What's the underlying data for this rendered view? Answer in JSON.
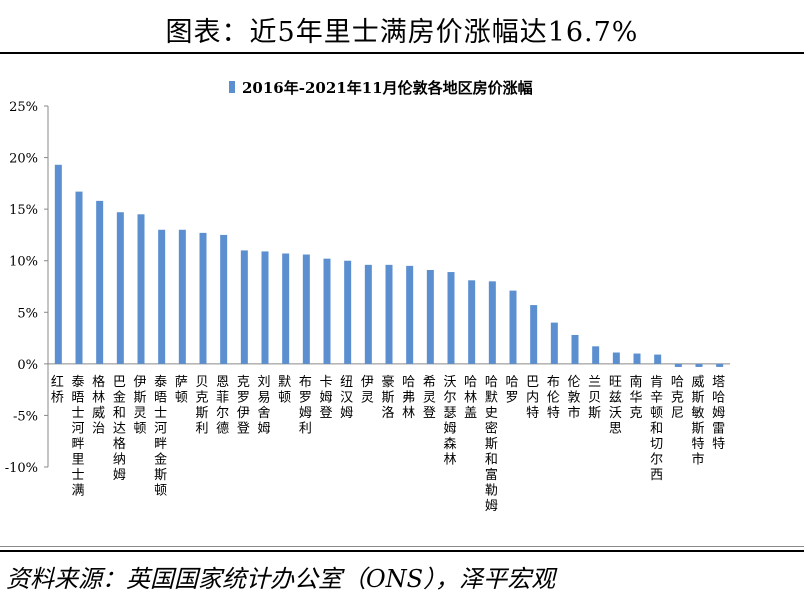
{
  "page_title": "图表：近5年里士满房价涨幅达16.7%",
  "source_note": "资料来源：英国国家统计办公室（ONS），泽平宏观",
  "chart_data": {
    "type": "bar",
    "title": "2016年-2021年11月伦敦各地区房价涨幅",
    "legend_position": "top",
    "ylim": [
      -0.1,
      0.25
    ],
    "yticks": [
      -0.1,
      -0.05,
      0,
      0.05,
      0.1,
      0.15,
      0.2,
      0.25
    ],
    "ytick_labels": [
      "-10%",
      "-5%",
      "0%",
      "5%",
      "10%",
      "15%",
      "20%",
      "25%"
    ],
    "grid": false,
    "bar_color": "#5b8fd0",
    "categories": [
      "红桥",
      "泰晤士河畔里士满",
      "格林威治",
      "巴金和达格纳姆",
      "伊斯灵顿",
      "泰晤士河畔金斯顿",
      "萨顿",
      "贝克斯利",
      "恩菲尔德",
      "克罗伊登",
      "刘易舍姆",
      "默顿",
      "布罗姆利",
      "卡姆登",
      "纽汉姆",
      "伊灵",
      "豪斯洛",
      "哈弗林",
      "希灵登",
      "沃尔瑟姆森林",
      "哈林盖",
      "哈默史密斯和富勒姆",
      "哈罗",
      "巴内特",
      "布伦特",
      "伦敦市",
      "兰贝斯",
      "旺兹沃思",
      "南华克",
      "肯辛顿和切尔西",
      "哈克尼",
      "威斯敏斯特市",
      "塔哈姆雷特"
    ],
    "values": [
      0.193,
      0.167,
      0.158,
      0.147,
      0.145,
      0.13,
      0.13,
      0.127,
      0.125,
      0.11,
      0.109,
      0.107,
      0.106,
      0.102,
      0.1,
      0.096,
      0.096,
      0.095,
      0.091,
      0.089,
      0.081,
      0.08,
      0.071,
      0.057,
      0.04,
      0.028,
      0.017,
      0.011,
      0.01,
      0.009,
      -0.003,
      -0.003,
      -0.003
    ]
  }
}
